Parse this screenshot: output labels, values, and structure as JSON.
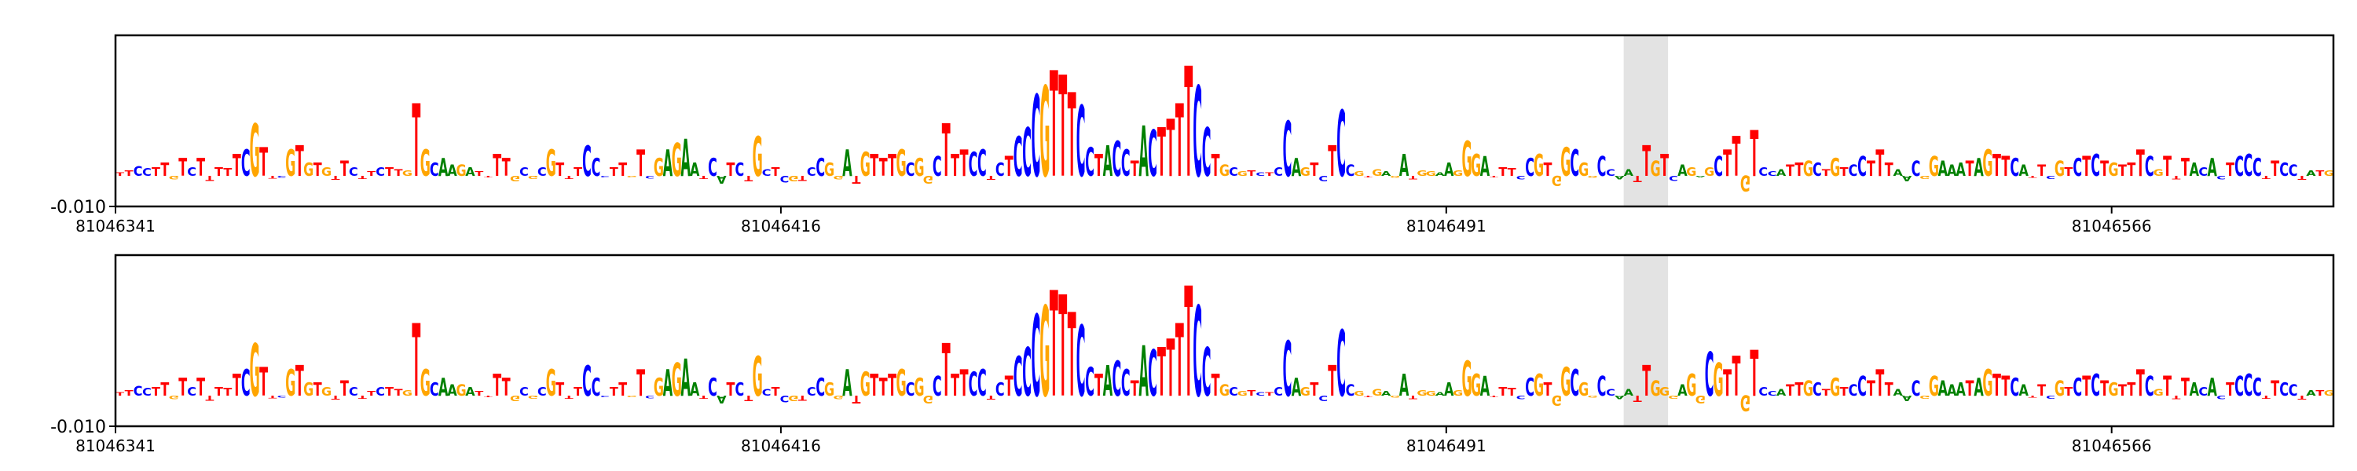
{
  "chart_data": [
    {
      "type": "sequence-logo",
      "panel": "upper",
      "ytick_label": "-0.010",
      "xtick_labels": [
        "81046341",
        "81046416",
        "81046491",
        "81046566"
      ],
      "xtick_values": [
        81046341,
        81046416,
        81046491,
        81046566
      ],
      "xlim": [
        81046341,
        81046591
      ],
      "highlight_region": [
        81046511,
        81046516
      ],
      "sequence": "TTCCTTGTCTTTTTCGTTCGTGTGTTCTTCTTGTGCAAGATTTTGCGCGTTTCCCTTGTCGAGAATCATCTGCTCGTCCGGATGTTTGCGGCTTTCCTCTCCCGTTTCCTACCTACTTTTCCTGCGTCTCCAGTCTCCGTGAGATGGAAGGGATTTCCGTGGCGGCCAATTGTCAGAGCTTGTCCATTGCTGTCCTTTAACGGAAATAGTTCATTCGTCTCTGTTTCGTTTACACTCCCTTCCTATG",
      "heights": [
        0.03,
        0.05,
        0.09,
        0.07,
        0.08,
        0.12,
        0.14,
        0.16,
        0.08,
        0.16,
        0.18,
        0.08,
        0.07,
        0.2,
        0.24,
        0.48,
        0.26,
        0.1,
        0.08,
        0.24,
        0.28,
        0.12,
        0.12,
        0.08,
        0.16,
        0.14,
        0.08,
        0.12,
        0.04,
        0.08,
        0.08,
        0.06,
        0.05,
        0.66,
        0.24,
        0.12,
        0.16,
        0.1,
        0.1,
        0.08,
        0.04,
        0.04,
        0.2,
        0.16,
        0.2,
        0.08,
        0.12,
        0.08,
        0.24,
        0.12,
        0.12,
        0.08,
        0.28,
        0.16,
        0.05,
        0.08,
        0.12,
        0.06,
        0.24,
        0.1,
        0.16,
        0.24,
        0.3,
        0.34,
        0.12,
        0.12,
        0.16,
        0.28,
        0.12,
        0.12,
        0.2,
        0.36,
        0.06,
        0.08,
        0.24,
        0.2,
        0.18,
        0.08,
        0.16,
        0.12,
        0.14,
        0.24,
        0.28,
        0.22,
        0.2,
        0.16,
        0.2,
        0.24,
        0.12,
        0.16,
        0.28,
        0.18,
        0.48,
        0.2,
        0.24,
        0.22,
        0.24,
        0.16,
        0.12,
        0.18,
        0.36,
        0.44,
        0.74,
        0.82,
        0.96,
        0.92,
        0.76,
        0.64,
        0.26,
        0.2,
        0.28,
        0.32,
        0.24,
        0.14,
        0.46,
        0.42,
        0.44,
        0.52,
        0.66,
        1.0,
        0.82,
        0.44,
        0.2,
        0.1,
        0.08,
        0.04,
        0.05,
        0.03,
        0.03,
        0.08,
        0.5,
        0.16,
        0.08,
        0.12,
        0.2,
        0.28,
        0.6,
        0.1,
        0.04,
        0.04,
        0.06,
        0.04,
        0.08,
        0.2,
        0.14,
        0.05,
        0.04,
        0.03,
        0.12,
        0.05,
        0.32,
        0.2,
        0.18,
        0.06,
        0.08,
        0.07,
        0.14,
        0.16,
        0.2,
        0.12,
        0.38,
        0.26,
        0.24,
        0.12,
        0.08,
        0.18,
        0.06,
        0.14,
        0.06,
        0.22,
        0.28,
        0.14,
        0.2,
        0.18,
        0.1,
        0.08,
        0.04,
        0.08,
        0.18,
        0.24,
        0.36,
        0.6,
        0.42,
        0.08,
        0.04,
        0.06,
        0.1,
        0.12,
        0.14,
        0.12,
        0.06,
        0.16,
        0.08,
        0.1,
        0.18,
        0.14,
        0.24,
        0.12,
        0.06,
        0.2,
        0.14,
        0.12,
        0.18,
        0.14,
        0.1,
        0.12,
        0.14,
        0.16,
        0.24,
        0.2,
        0.18,
        0.16,
        0.1,
        0.08,
        0.1,
        0.12,
        0.14,
        0.08,
        0.16,
        0.18,
        0.2,
        0.14,
        0.12,
        0.1,
        0.12,
        0.24,
        0.18,
        0.06,
        0.18,
        0.14,
        0.16,
        0.12,
        0.08,
        0.16,
        0.14,
        0.12,
        0.18,
        0.2,
        0.16,
        0.12,
        0.14,
        0.12,
        0.1,
        0.16
      ],
      "signs": [
        1,
        1,
        1,
        1,
        1,
        1,
        -1,
        1,
        1,
        1,
        -1,
        1,
        1,
        1,
        1,
        1,
        1,
        -1,
        -1,
        1,
        1,
        1,
        1,
        1,
        -1,
        1,
        1,
        -1,
        1,
        1,
        1,
        1,
        1,
        1,
        1,
        1,
        1,
        1,
        1,
        1,
        1,
        -1,
        1,
        1,
        -1,
        1,
        -1,
        1,
        1,
        1,
        -1,
        1,
        1,
        1,
        -1,
        1,
        1,
        -1,
        1,
        -1,
        1,
        1,
        1,
        1,
        1,
        -1,
        1,
        -1,
        1,
        1,
        -1,
        1,
        1,
        1,
        -1,
        -1,
        -1,
        1,
        1,
        1,
        -1,
        1,
        -1,
        1,
        1,
        1,
        1,
        1,
        1,
        1,
        -1,
        1,
        1,
        1,
        1,
        1,
        1,
        -1,
        1,
        1,
        1,
        1,
        1,
        1,
        1,
        1,
        1,
        1,
        1,
        1,
        1,
        1,
        1,
        1,
        1,
        1,
        1,
        1,
        1,
        1,
        1,
        1,
        1,
        1,
        1,
        1,
        1,
        1,
        1,
        1,
        1,
        1,
        1,
        1,
        -1,
        1,
        1,
        1,
        1,
        -1,
        1,
        1,
        -1,
        1,
        -1,
        1,
        1,
        1,
        1,
        1,
        1,
        1,
        1,
        -1,
        1,
        1,
        -1,
        1,
        1,
        1,
        -1,
        1,
        1,
        1,
        -1,
        1,
        1,
        -1,
        1,
        -1,
        1,
        1,
        1,
        -1,
        1,
        1,
        -1,
        1,
        1,
        1,
        1,
        -1,
        1,
        1,
        1,
        1,
        1,
        1,
        1,
        1,
        1,
        1,
        1,
        1,
        1,
        1,
        1,
        1,
        1,
        -1,
        1,
        -1,
        1,
        1,
        1,
        1,
        1,
        1,
        1,
        1,
        1,
        1,
        1,
        -1,
        1,
        -1,
        1,
        1,
        1,
        1,
        1,
        1,
        1,
        1,
        1,
        1,
        1,
        1,
        1,
        -1,
        1,
        1,
        1,
        1,
        -1,
        1,
        1,
        1,
        1,
        -1,
        1,
        1,
        1,
        -1,
        1,
        1,
        1,
        1,
        1,
        1,
        1
      ],
      "overrides": {}
    },
    {
      "type": "sequence-logo",
      "panel": "lower",
      "ytick_label": "-0.010",
      "xtick_labels": [
        "81046341",
        "81046416",
        "81046491",
        "81046566"
      ],
      "xtick_values": [
        81046341,
        81046416,
        81046491,
        81046566
      ],
      "xlim": [
        81046341,
        81046591
      ],
      "highlight_region": [
        81046511,
        81046516
      ],
      "sequence": "TTCCTTGTCTTTTTCGTTCGTGTGTTCTTCTTGTGCAAGATTTTGCGCGTTTCCCTTGTCGAGAATCATCTGCTCGTCCGGATGTTTGCGGCTTTCCTCTCCCGTTTCCTACCTACTTTTCCTGCGTCTCCAGTCTCCGTGAGATGGAAGGGATTTCCGTGGCGGCCAATTGTCAGAGCTTGTCCATTGCTGTCCTTTAACGGAAATAGTTCATTCGTCTCTGTTTCGTTTACACTCCCTTCCTATG",
      "heights": [
        0.03,
        0.05,
        0.09,
        0.07,
        0.08,
        0.12,
        0.14,
        0.16,
        0.08,
        0.16,
        0.18,
        0.08,
        0.07,
        0.2,
        0.24,
        0.48,
        0.26,
        0.1,
        0.08,
        0.24,
        0.28,
        0.12,
        0.12,
        0.08,
        0.16,
        0.14,
        0.08,
        0.12,
        0.04,
        0.08,
        0.08,
        0.06,
        0.05,
        0.66,
        0.24,
        0.12,
        0.16,
        0.1,
        0.1,
        0.08,
        0.04,
        0.04,
        0.2,
        0.16,
        0.2,
        0.08,
        0.12,
        0.08,
        0.24,
        0.12,
        0.12,
        0.08,
        0.28,
        0.16,
        0.05,
        0.08,
        0.12,
        0.06,
        0.24,
        0.1,
        0.16,
        0.24,
        0.3,
        0.34,
        0.12,
        0.12,
        0.16,
        0.28,
        0.12,
        0.12,
        0.2,
        0.36,
        0.06,
        0.08,
        0.24,
        0.2,
        0.18,
        0.08,
        0.16,
        0.12,
        0.14,
        0.24,
        0.28,
        0.22,
        0.2,
        0.16,
        0.2,
        0.24,
        0.12,
        0.16,
        0.28,
        0.18,
        0.48,
        0.2,
        0.24,
        0.22,
        0.24,
        0.16,
        0.12,
        0.18,
        0.36,
        0.44,
        0.74,
        0.82,
        0.96,
        0.92,
        0.76,
        0.64,
        0.26,
        0.2,
        0.28,
        0.32,
        0.24,
        0.14,
        0.46,
        0.42,
        0.44,
        0.52,
        0.66,
        1.0,
        0.82,
        0.44,
        0.2,
        0.1,
        0.08,
        0.04,
        0.05,
        0.03,
        0.03,
        0.08,
        0.5,
        0.16,
        0.08,
        0.12,
        0.2,
        0.28,
        0.6,
        0.1,
        0.04,
        0.04,
        0.06,
        0.04,
        0.08,
        0.2,
        0.14,
        0.05,
        0.04,
        0.03,
        0.12,
        0.05,
        0.32,
        0.2,
        0.18,
        0.06,
        0.08,
        0.07,
        0.14,
        0.16,
        0.2,
        0.12,
        0.38,
        0.26,
        0.24,
        0.12,
        0.08,
        0.18,
        0.06,
        0.14,
        0.06,
        0.22,
        0.28,
        0.14,
        0.2,
        0.18,
        0.1,
        0.08,
        0.04,
        0.08,
        0.18,
        0.24,
        0.36,
        0.6,
        0.42,
        0.08,
        0.04,
        0.06,
        0.1,
        0.12,
        0.14,
        0.12,
        0.06,
        0.16,
        0.08,
        0.1,
        0.18,
        0.14,
        0.24,
        0.12,
        0.06,
        0.2,
        0.14,
        0.12,
        0.18,
        0.14,
        0.1,
        0.12,
        0.14,
        0.16,
        0.24,
        0.2,
        0.18,
        0.16,
        0.1,
        0.08,
        0.1,
        0.12,
        0.14,
        0.08,
        0.16,
        0.18,
        0.2,
        0.14,
        0.12,
        0.1,
        0.12,
        0.24,
        0.18,
        0.06,
        0.18,
        0.14,
        0.16,
        0.12,
        0.08,
        0.16,
        0.14,
        0.12,
        0.18,
        0.2,
        0.16,
        0.12,
        0.14,
        0.12,
        0.1,
        0.16
      ],
      "signs": [
        1,
        1,
        1,
        1,
        1,
        1,
        -1,
        1,
        1,
        1,
        -1,
        1,
        1,
        1,
        1,
        1,
        1,
        -1,
        -1,
        1,
        1,
        1,
        1,
        1,
        -1,
        1,
        1,
        -1,
        1,
        1,
        1,
        1,
        1,
        1,
        1,
        1,
        1,
        1,
        1,
        1,
        1,
        -1,
        1,
        1,
        -1,
        1,
        -1,
        1,
        1,
        1,
        -1,
        1,
        1,
        1,
        -1,
        1,
        1,
        -1,
        1,
        -1,
        1,
        1,
        1,
        1,
        1,
        -1,
        1,
        -1,
        1,
        1,
        -1,
        1,
        1,
        1,
        -1,
        -1,
        -1,
        1,
        1,
        1,
        -1,
        1,
        -1,
        1,
        1,
        1,
        1,
        1,
        1,
        1,
        -1,
        1,
        1,
        1,
        1,
        1,
        1,
        -1,
        1,
        1,
        1,
        1,
        1,
        1,
        1,
        1,
        1,
        1,
        1,
        1,
        1,
        1,
        1,
        1,
        1,
        1,
        1,
        1,
        1,
        1,
        1,
        1,
        1,
        1,
        1,
        1,
        1,
        1,
        1,
        1,
        1,
        1,
        1,
        1,
        -1,
        1,
        1,
        1,
        1,
        -1,
        1,
        1,
        -1,
        1,
        -1,
        1,
        1,
        1,
        1,
        1,
        1,
        1,
        1,
        -1,
        1,
        1,
        -1,
        1,
        1,
        1,
        -1,
        1,
        1,
        1,
        -1,
        1,
        1,
        -1,
        1,
        -1,
        1,
        1,
        1,
        -1,
        1,
        1,
        -1,
        1,
        1,
        1,
        1,
        -1,
        1,
        1,
        1,
        1,
        1,
        1,
        1,
        1,
        1,
        1,
        1,
        1,
        1,
        1,
        1,
        1,
        1,
        -1,
        1,
        -1,
        1,
        1,
        1,
        1,
        1,
        1,
        1,
        1,
        1,
        1,
        1,
        -1,
        1,
        -1,
        1,
        1,
        1,
        1,
        1,
        1,
        1,
        1,
        1,
        1,
        1,
        1,
        1,
        -1,
        1,
        1,
        1,
        1,
        -1,
        1,
        1,
        1,
        1,
        -1,
        1,
        1,
        1,
        -1,
        1,
        1,
        1,
        1,
        1,
        1,
        1
      ],
      "overrides": {
        "172": {
          "base": "G",
          "height": 0.08
        },
        "173": {
          "base": "G",
          "height": 0.12
        },
        "174": {
          "base": "A",
          "height": 0.1
        },
        "175": {
          "base": "G",
          "height": 0.2
        },
        "176": {
          "base": "G",
          "height": 0.28
        },
        "177": {
          "base": "C",
          "height": 0.4
        },
        "178": {
          "base": "G",
          "height": 0.3
        }
      }
    }
  ],
  "colors": {
    "A": "#008000",
    "C": "#0000ff",
    "G": "#ffa500",
    "T": "#ff0000",
    "highlight": "#e3e3e3",
    "axis": "#000000"
  }
}
